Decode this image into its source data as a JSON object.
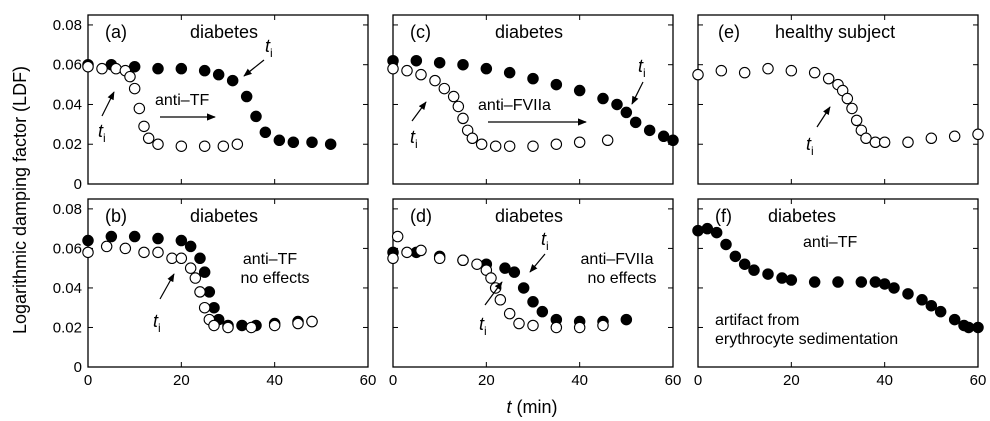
{
  "figure": {
    "ylabel": "Logarithmic damping factor (LDF)",
    "xlabel_var": "t",
    "xlabel_unit": " (min)",
    "xticks": [
      "0",
      "20",
      "40",
      "60"
    ],
    "yticks": [
      "0",
      "0.02",
      "0.04",
      "0.06",
      "0.08"
    ],
    "ti_main": "t",
    "ti_sub": "i"
  },
  "chart_data": [
    {
      "type": "scatter",
      "panel": "(a)",
      "title": "diabetes",
      "notes": [
        "anti–TF"
      ],
      "xlim": [
        0,
        60
      ],
      "ylim": [
        0,
        0.085
      ],
      "grid": false,
      "series": [
        {
          "style": "filled",
          "x": [
            0,
            5,
            10,
            15,
            20,
            25,
            28,
            31,
            34,
            36,
            38,
            41,
            44,
            48,
            52
          ],
          "y": [
            0.06,
            0.06,
            0.059,
            0.058,
            0.058,
            0.057,
            0.055,
            0.052,
            0.044,
            0.034,
            0.026,
            0.022,
            0.021,
            0.021,
            0.02
          ]
        },
        {
          "style": "open",
          "x": [
            0,
            3,
            6,
            8,
            9,
            10,
            11,
            12,
            13,
            15,
            20,
            25,
            29,
            32
          ],
          "y": [
            0.059,
            0.058,
            0.058,
            0.057,
            0.054,
            0.048,
            0.038,
            0.029,
            0.023,
            0.02,
            0.019,
            0.019,
            0.019,
            0.02
          ]
        }
      ],
      "markers": [
        {
          "label": "t_i",
          "series": "filled",
          "x": 33,
          "y": 0.056
        },
        {
          "label": "t_i",
          "series": "open",
          "x": 7,
          "y": 0.054
        }
      ]
    },
    {
      "type": "scatter",
      "panel": "(b)",
      "title": "diabetes",
      "notes": [
        "anti–TF",
        "no effects"
      ],
      "xlim": [
        0,
        60
      ],
      "ylim": [
        0,
        0.085
      ],
      "grid": false,
      "series": [
        {
          "style": "filled",
          "x": [
            0,
            5,
            10,
            15,
            20,
            22,
            24,
            25,
            26,
            27,
            28,
            30,
            33,
            36,
            40,
            45,
            48
          ],
          "y": [
            0.064,
            0.066,
            0.066,
            0.065,
            0.064,
            0.061,
            0.055,
            0.048,
            0.038,
            0.03,
            0.024,
            0.021,
            0.021,
            0.021,
            0.022,
            0.023,
            0.023
          ]
        },
        {
          "style": "open",
          "x": [
            0,
            4,
            8,
            12,
            15,
            18,
            20,
            22,
            23,
            24,
            25,
            26,
            27,
            30,
            35,
            40,
            45,
            48
          ],
          "y": [
            0.058,
            0.061,
            0.06,
            0.058,
            0.058,
            0.055,
            0.055,
            0.05,
            0.045,
            0.038,
            0.03,
            0.024,
            0.021,
            0.02,
            0.02,
            0.021,
            0.022,
            0.023
          ]
        }
      ],
      "markers": [
        {
          "label": "t_i",
          "series": "open",
          "x": 18,
          "y": 0.05
        }
      ]
    },
    {
      "type": "scatter",
      "panel": "(c)",
      "title": "diabetes",
      "notes": [
        "anti–FVIIa"
      ],
      "xlim": [
        0,
        60
      ],
      "ylim": [
        0,
        0.085
      ],
      "grid": false,
      "series": [
        {
          "style": "filled",
          "x": [
            0,
            5,
            10,
            15,
            20,
            25,
            30,
            35,
            40,
            45,
            48,
            50,
            52,
            55,
            58,
            60
          ],
          "y": [
            0.062,
            0.062,
            0.061,
            0.06,
            0.058,
            0.056,
            0.053,
            0.05,
            0.047,
            0.043,
            0.04,
            0.036,
            0.031,
            0.027,
            0.024,
            0.022
          ]
        },
        {
          "style": "open",
          "x": [
            0,
            3,
            6,
            9,
            11,
            13,
            14,
            15,
            16,
            17,
            19,
            22,
            25,
            30,
            35,
            40,
            46
          ],
          "y": [
            0.058,
            0.057,
            0.055,
            0.052,
            0.048,
            0.044,
            0.039,
            0.033,
            0.027,
            0.023,
            0.02,
            0.019,
            0.019,
            0.019,
            0.02,
            0.021,
            0.022
          ]
        }
      ],
      "markers": [
        {
          "label": "t_i",
          "series": "filled",
          "x": 50,
          "y": 0.036
        },
        {
          "label": "t_i",
          "series": "open",
          "x": 6,
          "y": 0.052
        }
      ]
    },
    {
      "type": "scatter",
      "panel": "(d)",
      "title": "diabetes",
      "notes": [
        "anti–FVIIa",
        "no effects"
      ],
      "xlim": [
        0,
        60
      ],
      "ylim": [
        0,
        0.085
      ],
      "grid": false,
      "series": [
        {
          "style": "filled",
          "x": [
            0,
            5,
            10,
            15,
            20,
            24,
            26,
            28,
            30,
            32,
            35,
            40,
            45,
            50
          ],
          "y": [
            0.058,
            0.058,
            0.056,
            0.054,
            0.052,
            0.05,
            0.048,
            0.04,
            0.033,
            0.028,
            0.024,
            0.023,
            0.023,
            0.024
          ]
        },
        {
          "style": "open",
          "x": [
            0,
            1,
            3,
            6,
            10,
            15,
            18,
            20,
            21,
            22,
            23,
            25,
            27,
            30,
            35,
            40,
            45
          ],
          "y": [
            0.055,
            0.066,
            0.058,
            0.059,
            0.055,
            0.054,
            0.052,
            0.049,
            0.045,
            0.04,
            0.034,
            0.027,
            0.022,
            0.021,
            0.02,
            0.02,
            0.021
          ]
        }
      ],
      "markers": [
        {
          "label": "t_i",
          "series": "filled",
          "x": 28,
          "y": 0.044
        },
        {
          "label": "t_i",
          "series": "open",
          "x": 24,
          "y": 0.036
        }
      ]
    },
    {
      "type": "scatter",
      "panel": "(e)",
      "title": "healthy subject",
      "notes": [],
      "xlim": [
        0,
        60
      ],
      "ylim": [
        0,
        0.085
      ],
      "grid": false,
      "series": [
        {
          "style": "open",
          "x": [
            0,
            5,
            10,
            15,
            20,
            25,
            28,
            30,
            31,
            32,
            33,
            34,
            35,
            36,
            38,
            40,
            45,
            50,
            55,
            60
          ],
          "y": [
            0.055,
            0.057,
            0.056,
            0.058,
            0.057,
            0.056,
            0.053,
            0.05,
            0.047,
            0.043,
            0.038,
            0.032,
            0.027,
            0.023,
            0.021,
            0.021,
            0.021,
            0.023,
            0.024,
            0.025
          ]
        }
      ],
      "markers": [
        {
          "label": "t_i",
          "series": "open",
          "x": 30,
          "y": 0.046
        }
      ]
    },
    {
      "type": "scatter",
      "panel": "(f)",
      "title": "diabetes",
      "notes": [
        "anti–TF",
        "artifact from",
        "erythrocyte sedimentation"
      ],
      "xlim": [
        0,
        60
      ],
      "ylim": [
        0,
        0.085
      ],
      "grid": false,
      "series": [
        {
          "style": "filled",
          "x": [
            0,
            2,
            4,
            6,
            8,
            10,
            12,
            15,
            18,
            20,
            25,
            30,
            35,
            38,
            40,
            42,
            45,
            48,
            50,
            52,
            55,
            57,
            58,
            60
          ],
          "y": [
            0.069,
            0.07,
            0.068,
            0.062,
            0.056,
            0.052,
            0.049,
            0.047,
            0.045,
            0.044,
            0.043,
            0.043,
            0.043,
            0.043,
            0.042,
            0.04,
            0.037,
            0.034,
            0.031,
            0.028,
            0.024,
            0.021,
            0.02,
            0.02
          ]
        }
      ],
      "markers": []
    }
  ]
}
